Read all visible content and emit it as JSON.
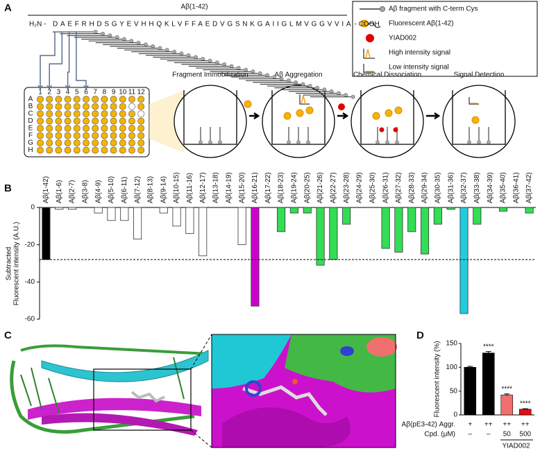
{
  "panel_labels": [
    "A",
    "B",
    "C",
    "D"
  ],
  "panel_a": {
    "title": "Aβ(1-42)",
    "n_terminus": "H₂N -",
    "residues": "DAEFRHDSGYEVHHQKLVFFAEDVGSNKGAIIGLMVGGVVIA",
    "c_terminus": "- COOH",
    "legend": [
      "Aβ fragment with C-term Cys",
      "Fluorescent Aβ(1-42)",
      "YIAD002",
      "High intensity signal",
      "Low intensity signal"
    ],
    "steps": [
      "Fragment Immobilization",
      "Aβ Aggregation",
      "Chemical Dissociation",
      "Signal Detection"
    ],
    "plate_columns": [
      "1",
      "2",
      "3",
      "4",
      "5",
      "6",
      "7",
      "8",
      "9",
      "10",
      "11",
      "12"
    ],
    "plate_rows": [
      "A",
      "B",
      "C",
      "D",
      "E",
      "F",
      "G",
      "H"
    ]
  },
  "chart_data": [
    {
      "type": "bar",
      "y_label": [
        "Subtracted",
        "Fluorescent intensity (A.U.)"
      ],
      "categories": [
        "Aβ(1-42)",
        "Aβ(1-6)",
        "Aβ(2-7)",
        "Aβ(3-8)",
        "Aβ(4-9)",
        "Aβ(5-10)",
        "Aβ(6-11)",
        "Aβ(7-12)",
        "Aβ(8-13)",
        "Aβ(9-14)",
        "Aβ(10-15)",
        "Aβ(11-16)",
        "Aβ(12-17)",
        "Aβ(13-18)",
        "Aβ(14-19)",
        "Aβ(15-20)",
        "Aβ(16-21)",
        "Aβ(17-22)",
        "Aβ(18-23)",
        "Aβ(19-24)",
        "Aβ(20-25)",
        "Aβ(21-26)",
        "Aβ(22-27)",
        "Aβ(23-28)",
        "Aβ(24-29)",
        "Aβ(25-30)",
        "Aβ(26-31)",
        "Aβ(27-32)",
        "Aβ(28-33)",
        "Aβ(29-34)",
        "Aβ(30-35)",
        "Aβ(31-36)",
        "Aβ(32-37)",
        "Aβ(33-38)",
        "Aβ(34-39)",
        "Aβ(35-40)",
        "Aβ(36-41)",
        "Aβ(37-42)"
      ],
      "values": [
        -28,
        -1,
        -1,
        0,
        -3,
        -7,
        -7,
        -17,
        0,
        -3,
        -10,
        -14,
        -26,
        0,
        0,
        -20,
        -53,
        0,
        -13,
        -3,
        -3,
        -31,
        -28,
        -9,
        0,
        0,
        -22,
        -24,
        -13,
        -25,
        -9,
        -1,
        -57,
        -9,
        0,
        -2,
        0,
        -3
      ],
      "colors": [
        "#000000",
        "#ffffff",
        "#ffffff",
        "#ffffff",
        "#ffffff",
        "#ffffff",
        "#ffffff",
        "#ffffff",
        "#ffffff",
        "#ffffff",
        "#ffffff",
        "#ffffff",
        "#ffffff",
        "#ffffff",
        "#ffffff",
        "#ffffff",
        "#cc00cc",
        "#ffffff",
        "#33dd55",
        "#33dd55",
        "#33dd55",
        "#33dd55",
        "#33dd55",
        "#33dd55",
        "#33dd55",
        "#33dd55",
        "#33dd55",
        "#33dd55",
        "#33dd55",
        "#33dd55",
        "#33dd55",
        "#33dd55",
        "#22ccdd",
        "#33dd55",
        "#33dd55",
        "#33dd55",
        "#33dd55",
        "#33dd55"
      ],
      "ylim": [
        -60,
        0
      ],
      "yticks": [
        0,
        -20,
        -40,
        -60
      ]
    },
    {
      "type": "errorbar",
      "y_label": "Fluorescent intensity (%)",
      "values": [
        100,
        130,
        42,
        12
      ],
      "errors": [
        2,
        3,
        2,
        1
      ],
      "colors": [
        "#000000",
        "#000000",
        "#f07070",
        "#e01010"
      ],
      "annotations": [
        null,
        "****",
        "****",
        "****"
      ],
      "ylim": [
        0,
        150
      ],
      "yticks": [
        0,
        50,
        100,
        150
      ],
      "conditions": [
        {
          "label": "Aβ(pE3-42) Aggr.",
          "values": [
            "+",
            "++",
            "++",
            "++"
          ]
        },
        {
          "label": "Cpd. (μM)",
          "values": [
            "–",
            "–",
            "50",
            "500"
          ]
        }
      ],
      "group_label": "YIAD002"
    }
  ]
}
